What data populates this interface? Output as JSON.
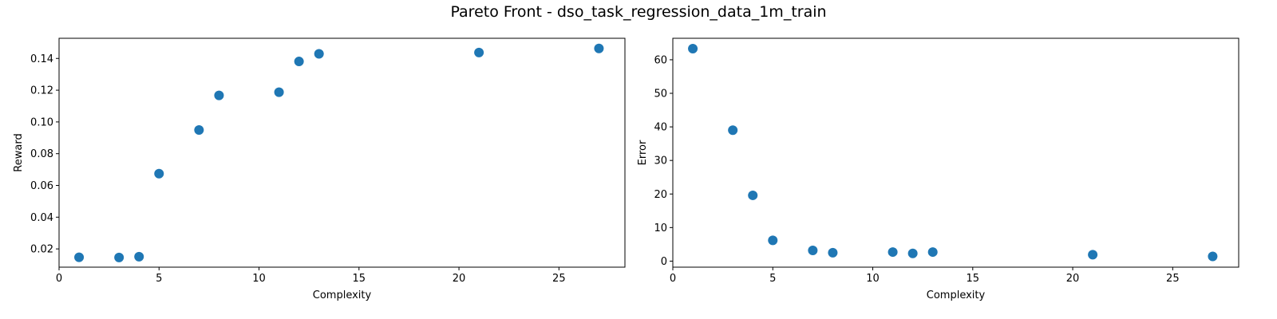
{
  "figure": {
    "title": "Pareto Front - dso_task_regression_data_1m_train"
  },
  "chart_data": [
    {
      "type": "scatter",
      "xlabel": "Complexity",
      "ylabel": "Reward",
      "xlim": [
        0,
        28.3
      ],
      "ylim": [
        0.0085,
        0.1527
      ],
      "xticks": [
        0,
        5,
        10,
        15,
        20,
        25
      ],
      "yticks": [
        0.02,
        0.04,
        0.06,
        0.08,
        0.1,
        0.12,
        0.14
      ],
      "ytick_labels": [
        "0.02",
        "0.04",
        "0.06",
        "0.08",
        "0.10",
        "0.12",
        "0.14"
      ],
      "marker_color": "#1f77b4",
      "grid": false,
      "x": [
        1,
        3,
        4,
        5,
        7,
        8,
        11,
        12,
        13,
        21,
        27
      ],
      "y": [
        0.0147,
        0.0146,
        0.0151,
        0.0674,
        0.0949,
        0.1167,
        0.1187,
        0.1381,
        0.1429,
        0.1437,
        0.1463
      ]
    },
    {
      "type": "scatter",
      "xlabel": "Complexity",
      "ylabel": "Error",
      "xlim": [
        0,
        28.3
      ],
      "ylim": [
        -1.8,
        66.4
      ],
      "xticks": [
        0,
        5,
        10,
        15,
        20,
        25
      ],
      "yticks": [
        0,
        10,
        20,
        30,
        40,
        50,
        60
      ],
      "ytick_labels": [
        "0",
        "10",
        "20",
        "30",
        "40",
        "50",
        "60"
      ],
      "marker_color": "#1f77b4",
      "grid": false,
      "x": [
        1,
        3,
        4,
        5,
        7,
        8,
        11,
        12,
        13,
        21,
        27
      ],
      "y": [
        63.3,
        39.0,
        19.6,
        6.2,
        3.2,
        2.5,
        2.7,
        2.3,
        2.7,
        1.9,
        1.4
      ]
    }
  ]
}
